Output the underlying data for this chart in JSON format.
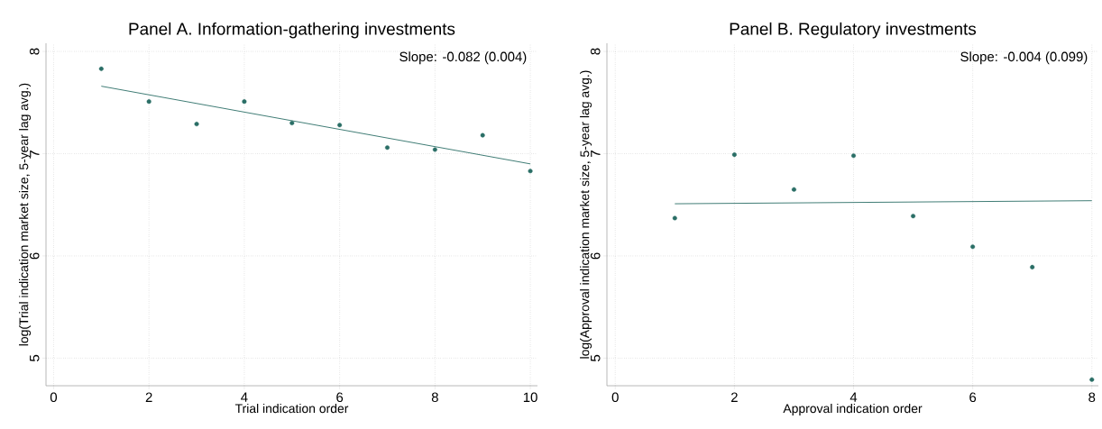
{
  "chart_data": [
    {
      "type": "scatter",
      "title": "Panel A. Information-gathering investments",
      "xlabel": "Trial indication order",
      "ylabel": "log(Trial indication market size, 5-year lag avg.)",
      "annotations": [
        "Slope: -0.082 (0.004)"
      ],
      "x": [
        1,
        2,
        3,
        4,
        5,
        6,
        7,
        8,
        9,
        10
      ],
      "grid": true,
      "xlim": [
        -0.16,
        10.15
      ],
      "ylim": [
        4.73,
        8.08
      ],
      "xticks": [
        0,
        2,
        4,
        6,
        8,
        10
      ],
      "yticks": [
        5,
        6,
        7,
        8
      ],
      "series": [
        {
          "color": "#2a6e66",
          "marker": "circle",
          "values": [
            7.83,
            7.51,
            7.29,
            7.51,
            7.3,
            7.28,
            7.06,
            7.04,
            7.18,
            6.83
          ]
        },
        {
          "type": "line",
          "x": [
            1,
            10
          ],
          "color": "#2a6e66",
          "values": [
            7.66,
            6.9
          ]
        }
      ]
    },
    {
      "type": "scatter",
      "title": "Panel B. Regulatory investments",
      "xlabel": "Approval indication order",
      "ylabel": "log(Approval indication market size, 5-year lag avg.)",
      "annotations": [
        "Slope: -0.004 (0.099)"
      ],
      "x": [
        1,
        2,
        3,
        4,
        5,
        6,
        7,
        8
      ],
      "grid": true,
      "xlim": [
        -0.14,
        8.11
      ],
      "ylim": [
        4.73,
        8.08
      ],
      "xticks": [
        0,
        2,
        4,
        6,
        8
      ],
      "yticks": [
        5,
        6,
        7,
        8
      ],
      "series": [
        {
          "color": "#2a6e66",
          "marker": "circle",
          "values": [
            6.37,
            6.99,
            6.65,
            6.98,
            6.39,
            6.09,
            5.89,
            4.79
          ]
        },
        {
          "type": "line",
          "x": [
            1,
            8
          ],
          "color": "#2a6e66",
          "values": [
            6.51,
            6.54
          ]
        }
      ]
    }
  ]
}
